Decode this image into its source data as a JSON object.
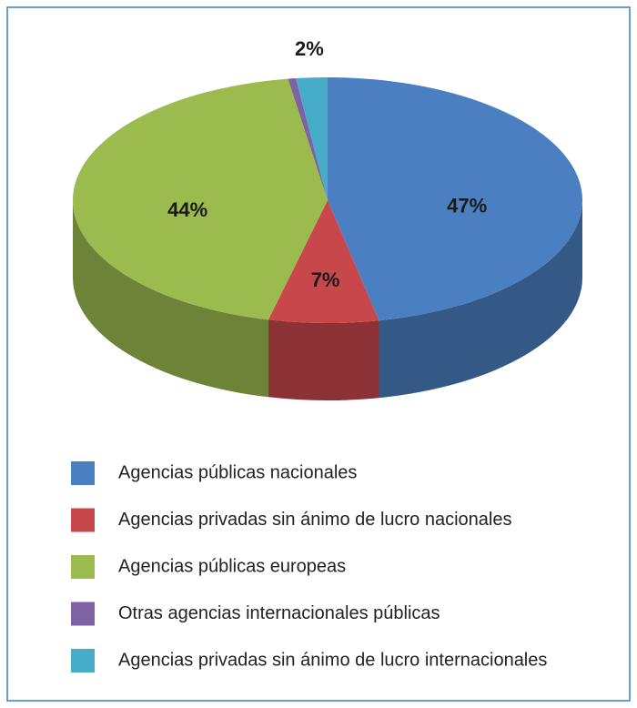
{
  "chart_data": {
    "type": "pie",
    "categories": [
      "Agencias públicas nacionales",
      "Agencias privadas sin ánimo de lucro nacionales",
      "Agencias públicas europeas",
      "Otras agencias internacionales públicas",
      "Agencias privadas sin ánimo de lucro internacionales"
    ],
    "values": [
      47,
      7,
      44,
      0.5,
      2
    ],
    "value_labels": [
      "47%",
      "7%",
      "44%",
      null,
      "2%"
    ],
    "colors": [
      "#4a7fc1",
      "#c8474a",
      "#9bbb4f",
      "#7e62a3",
      "#46acc7"
    ],
    "legend": "bottom"
  }
}
